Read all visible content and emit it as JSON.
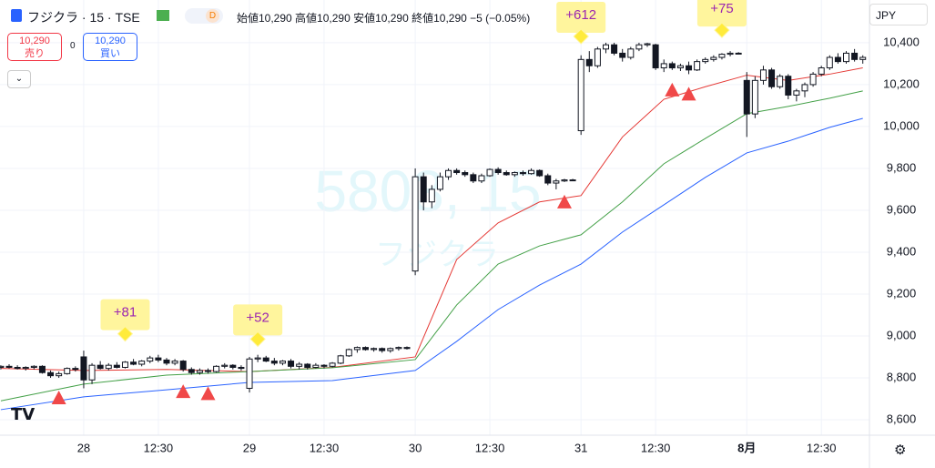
{
  "header": {
    "symbol": "フジクラ · 15 · TSE",
    "interval_badge": "D",
    "ohlc": "始値10,290 高値10,290 安値10,290 終値10,290 −5 (−0.05%)",
    "sell_price": "10,290",
    "sell_label": "売り",
    "spread": "0",
    "buy_price": "10,290",
    "buy_label": "買い",
    "currency": "JPY",
    "watermark_code": "5803, 15",
    "watermark_name": "フジクラ"
  },
  "chart_data": {
    "type": "candlestick",
    "xlim": [
      -0.1,
      104.8
    ],
    "ylim": [
      8526,
      10604
    ],
    "yticks": [
      {
        "value": 8600,
        "label": "8,600"
      },
      {
        "value": 8800,
        "label": "8,800"
      },
      {
        "value": 9000,
        "label": "9,000"
      },
      {
        "value": 9200,
        "label": "9,200"
      },
      {
        "value": 9400,
        "label": "9,400"
      },
      {
        "value": 9600,
        "label": "9,600"
      },
      {
        "value": 9800,
        "label": "9,800"
      },
      {
        "value": 10000,
        "label": "10,000"
      },
      {
        "value": 10200,
        "label": "10,200"
      },
      {
        "value": 10400,
        "label": "10,400"
      }
    ],
    "xticks": [
      {
        "value": 10,
        "label": "28"
      },
      {
        "value": 19,
        "label": "12:30"
      },
      {
        "value": 30,
        "label": "29"
      },
      {
        "value": 39,
        "label": "12:30"
      },
      {
        "value": 50,
        "label": "30"
      },
      {
        "value": 59,
        "label": "12:30"
      },
      {
        "value": 70,
        "label": "31"
      },
      {
        "value": 79,
        "label": "12:30"
      },
      {
        "value": 90,
        "label": "8月"
      },
      {
        "value": 99,
        "label": "12:30"
      }
    ],
    "grid": true,
    "candles": [
      [
        8850,
        8860,
        8840,
        8855
      ],
      [
        8855,
        8865,
        8845,
        8850
      ],
      [
        8850,
        8860,
        8840,
        8845
      ],
      [
        8845,
        8855,
        8835,
        8850
      ],
      [
        8850,
        8860,
        8840,
        8855
      ],
      [
        8855,
        8860,
        8820,
        8825
      ],
      [
        8825,
        8835,
        8800,
        8810
      ],
      [
        8810,
        8830,
        8800,
        8820
      ],
      [
        8820,
        8850,
        8815,
        8845
      ],
      [
        8845,
        8855,
        8830,
        8840
      ],
      [
        8900,
        8930,
        8750,
        8790
      ],
      [
        8790,
        8870,
        8770,
        8860
      ],
      [
        8860,
        8880,
        8840,
        8845
      ],
      [
        8845,
        8870,
        8835,
        8860
      ],
      [
        8860,
        8875,
        8845,
        8850
      ],
      [
        8850,
        8880,
        8845,
        8875
      ],
      [
        8875,
        8890,
        8860,
        8865
      ],
      [
        8865,
        8885,
        8855,
        8880
      ],
      [
        8880,
        8905,
        8870,
        8895
      ],
      [
        8895,
        8910,
        8875,
        8885
      ],
      [
        8885,
        8895,
        8860,
        8870
      ],
      [
        8870,
        8890,
        8860,
        8880
      ],
      [
        8880,
        8885,
        8830,
        8840
      ],
      [
        8840,
        8850,
        8815,
        8825
      ],
      [
        8825,
        8845,
        8815,
        8835
      ],
      [
        8835,
        8845,
        8820,
        8830
      ],
      [
        8830,
        8860,
        8825,
        8855
      ],
      [
        8855,
        8870,
        8845,
        8860
      ],
      [
        8860,
        8865,
        8840,
        8850
      ],
      [
        8850,
        8860,
        8835,
        8845
      ],
      [
        8750,
        8900,
        8730,
        8890
      ],
      [
        8890,
        8910,
        8875,
        8895
      ],
      [
        8895,
        8905,
        8875,
        8880
      ],
      [
        8880,
        8895,
        8860,
        8870
      ],
      [
        8870,
        8885,
        8860,
        8880
      ],
      [
        8880,
        8890,
        8845,
        8855
      ],
      [
        8855,
        8875,
        8840,
        8865
      ],
      [
        8865,
        8870,
        8840,
        8850
      ],
      [
        8850,
        8870,
        8845,
        8860
      ],
      [
        8860,
        8865,
        8845,
        8855
      ],
      [
        8855,
        8875,
        8850,
        8870
      ],
      [
        8870,
        8910,
        8865,
        8905
      ],
      [
        8905,
        8940,
        8900,
        8935
      ],
      [
        8935,
        8950,
        8920,
        8945
      ],
      [
        8945,
        8950,
        8930,
        8935
      ],
      [
        8935,
        8945,
        8925,
        8940
      ],
      [
        8940,
        8945,
        8920,
        8930
      ],
      [
        8930,
        8945,
        8920,
        8940
      ],
      [
        8940,
        8950,
        8930,
        8945
      ],
      [
        8945,
        8950,
        8935,
        8940
      ],
      [
        9310,
        9800,
        9290,
        9760
      ],
      [
        9760,
        9780,
        9600,
        9640
      ],
      [
        9640,
        9720,
        9610,
        9700
      ],
      [
        9700,
        9780,
        9690,
        9760
      ],
      [
        9760,
        9800,
        9745,
        9790
      ],
      [
        9790,
        9800,
        9770,
        9780
      ],
      [
        9780,
        9790,
        9760,
        9770
      ],
      [
        9770,
        9780,
        9730,
        9740
      ],
      [
        9740,
        9775,
        9730,
        9765
      ],
      [
        9765,
        9800,
        9760,
        9795
      ],
      [
        9795,
        9805,
        9770,
        9780
      ],
      [
        9780,
        9790,
        9765,
        9770
      ],
      [
        9770,
        9785,
        9760,
        9780
      ],
      [
        9780,
        9790,
        9765,
        9775
      ],
      [
        9775,
        9800,
        9770,
        9790
      ],
      [
        9790,
        9795,
        9760,
        9765
      ],
      [
        9765,
        9775,
        9720,
        9730
      ],
      [
        9730,
        9750,
        9700,
        9740
      ],
      [
        9740,
        9750,
        9735,
        9745
      ],
      [
        9745,
        9750,
        9740,
        9745
      ],
      [
        9980,
        10340,
        9960,
        10320
      ],
      [
        10320,
        10360,
        10260,
        10290
      ],
      [
        10290,
        10380,
        10280,
        10370
      ],
      [
        10370,
        10400,
        10350,
        10390
      ],
      [
        10390,
        10400,
        10340,
        10350
      ],
      [
        10350,
        10370,
        10310,
        10330
      ],
      [
        10330,
        10380,
        10320,
        10370
      ],
      [
        10370,
        10400,
        10360,
        10390
      ],
      [
        10390,
        10400,
        10380,
        10395
      ],
      [
        10390,
        10395,
        10270,
        10280
      ],
      [
        10280,
        10320,
        10260,
        10300
      ],
      [
        10300,
        10310,
        10270,
        10280
      ],
      [
        10280,
        10300,
        10265,
        10290
      ],
      [
        10290,
        10310,
        10250,
        10270
      ],
      [
        10270,
        10320,
        10265,
        10310
      ],
      [
        10310,
        10330,
        10300,
        10320
      ],
      [
        10320,
        10340,
        10310,
        10330
      ],
      [
        10330,
        10350,
        10320,
        10345
      ],
      [
        10345,
        10360,
        10335,
        10350
      ],
      [
        10350,
        10355,
        10345,
        10350
      ],
      [
        10220,
        10260,
        9950,
        10060
      ],
      [
        10060,
        10240,
        10040,
        10220
      ],
      [
        10220,
        10290,
        10200,
        10270
      ],
      [
        10270,
        10280,
        10180,
        10190
      ],
      [
        10190,
        10250,
        10180,
        10240
      ],
      [
        10240,
        10250,
        10130,
        10150
      ],
      [
        10150,
        10180,
        10120,
        10170
      ],
      [
        10170,
        10210,
        10140,
        10200
      ],
      [
        10200,
        10260,
        10190,
        10250
      ],
      [
        10250,
        10290,
        10240,
        10280
      ],
      [
        10280,
        10340,
        10270,
        10330
      ],
      [
        10330,
        10350,
        10300,
        10310
      ],
      [
        10310,
        10360,
        10300,
        10350
      ],
      [
        10350,
        10370,
        10310,
        10320
      ],
      [
        10320,
        10340,
        10300,
        10330
      ]
    ],
    "lines": [
      {
        "color": "#e53935",
        "x": [
          0,
          10,
          20,
          30,
          40,
          50,
          55,
          60,
          65,
          70,
          75,
          80,
          85,
          90,
          95,
          100,
          104
        ],
        "values": [
          8845,
          8835,
          8840,
          8830,
          8850,
          8900,
          9365,
          9540,
          9640,
          9670,
          9950,
          10130,
          10190,
          10245,
          10220,
          10250,
          10280
        ]
      },
      {
        "color": "#43a047",
        "x": [
          0,
          10,
          20,
          30,
          40,
          50,
          55,
          60,
          65,
          70,
          75,
          80,
          85,
          90,
          95,
          100,
          104
        ],
        "values": [
          8690,
          8770,
          8813,
          8830,
          8848,
          8887,
          9148,
          9343,
          9430,
          9483,
          9640,
          9822,
          9943,
          10061,
          10096,
          10135,
          10170
        ]
      },
      {
        "color": "#2962ff",
        "x": [
          0,
          10,
          20,
          30,
          40,
          50,
          55,
          60,
          65,
          70,
          75,
          80,
          85,
          90,
          95,
          100,
          104
        ],
        "values": [
          8648,
          8709,
          8743,
          8778,
          8787,
          8835,
          8974,
          9126,
          9243,
          9343,
          9496,
          9626,
          9757,
          9874,
          9930,
          9996,
          10039
        ]
      }
    ],
    "signals": {
      "color": "#f04848",
      "x": [
        7,
        22,
        25,
        68,
        81,
        83
      ]
    },
    "annotations": [
      {
        "text": "+81",
        "x": 15,
        "y": 9010
      },
      {
        "text": "+52",
        "x": 31,
        "y": 8985
      },
      {
        "text": "+612",
        "x": 70,
        "y": 10430
      },
      {
        "text": "+75",
        "x": 87,
        "y": 10460
      }
    ]
  }
}
